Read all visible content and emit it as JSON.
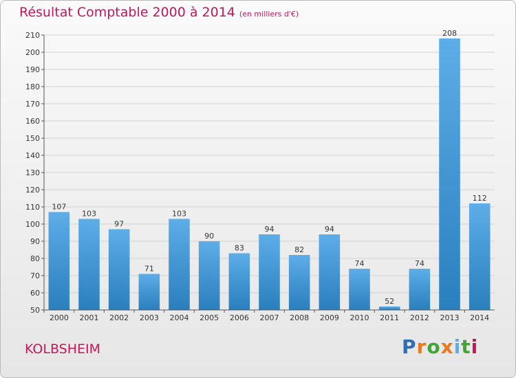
{
  "chart_data": {
    "type": "bar",
    "title": "Résultat Comptable 2000 à 2014",
    "subtitle": "(en milliers d'€)",
    "categories": [
      "2000",
      "2001",
      "2002",
      "2003",
      "2004",
      "2005",
      "2006",
      "2007",
      "2008",
      "2009",
      "2010",
      "2011",
      "2012",
      "2013",
      "2014"
    ],
    "values": [
      107,
      103,
      97,
      71,
      103,
      90,
      83,
      94,
      82,
      94,
      74,
      52,
      74,
      208,
      112
    ],
    "ylim": [
      50,
      210
    ],
    "yticks": [
      50,
      60,
      70,
      80,
      90,
      100,
      110,
      120,
      130,
      140,
      150,
      160,
      170,
      180,
      190,
      200,
      210
    ],
    "grid": true,
    "colors": {
      "bar_top": "#5dade8",
      "bar_bottom": "#2a7fbd",
      "title": "#c2185b"
    }
  },
  "footer": {
    "place": "KOLBSHEIM",
    "logo": "Proxiti",
    "logo_colors": [
      "#2f6db5",
      "#e8791e",
      "#3fa535",
      "#e8791e",
      "#6aa8d8",
      "#3fa535",
      "#c2185b"
    ]
  }
}
